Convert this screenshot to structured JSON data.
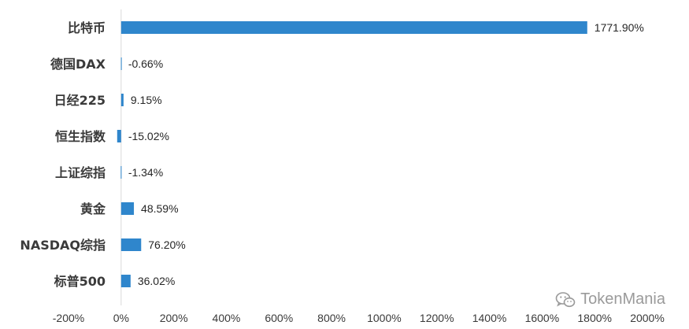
{
  "chart_data": {
    "type": "bar",
    "orientation": "horizontal",
    "categories": [
      "比特币",
      "德国DAX",
      "日经225",
      "恒生指数",
      "上证综指",
      "黄金",
      "NASDAQ综指",
      "标普500"
    ],
    "values": [
      1771.9,
      -0.66,
      9.15,
      -15.02,
      -1.34,
      48.59,
      76.2,
      36.02
    ],
    "data_labels": [
      "1771.90%",
      "-0.66%",
      "9.15%",
      "-15.02%",
      "-1.34%",
      "48.59%",
      "76.20%",
      "36.02%"
    ],
    "xlim": [
      -200,
      2000
    ],
    "x_ticks": [
      -200,
      0,
      200,
      400,
      600,
      800,
      1000,
      1200,
      1400,
      1600,
      1800,
      2000
    ],
    "x_tick_labels": [
      "-200%",
      "0%",
      "200%",
      "400%",
      "600%",
      "800%",
      "1000%",
      "1200%",
      "1400%",
      "1600%",
      "1800%",
      "2000%"
    ],
    "bar_color": "#2f86cc",
    "grid": false,
    "legend": "none"
  },
  "watermark": {
    "icon": "wechat-icon",
    "text": "TokenMania"
  }
}
